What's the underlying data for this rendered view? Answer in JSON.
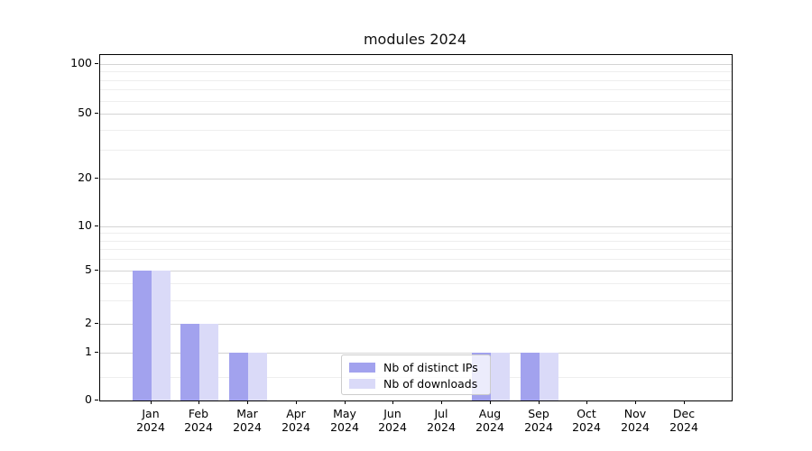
{
  "chart_data": {
    "type": "bar",
    "title": "modules 2024",
    "categories": [
      {
        "month": "Jan",
        "year": "2024"
      },
      {
        "month": "Feb",
        "year": "2024"
      },
      {
        "month": "Mar",
        "year": "2024"
      },
      {
        "month": "Apr",
        "year": "2024"
      },
      {
        "month": "May",
        "year": "2024"
      },
      {
        "month": "Jun",
        "year": "2024"
      },
      {
        "month": "Jul",
        "year": "2024"
      },
      {
        "month": "Aug",
        "year": "2024"
      },
      {
        "month": "Sep",
        "year": "2024"
      },
      {
        "month": "Oct",
        "year": "2024"
      },
      {
        "month": "Nov",
        "year": "2024"
      },
      {
        "month": "Dec",
        "year": "2024"
      }
    ],
    "series": [
      {
        "name": "Nb of distinct IPs",
        "color": "#a2a2ee",
        "values": [
          5,
          2,
          1,
          0,
          0,
          0,
          0,
          1,
          1,
          0,
          0,
          0
        ]
      },
      {
        "name": "Nb of downloads",
        "color": "#dadaf8",
        "values": [
          5,
          2,
          1,
          0,
          0,
          0,
          0,
          1,
          1,
          0,
          0,
          0
        ]
      }
    ],
    "xlabel": "",
    "ylabel": "",
    "yscale": "symlog-like (linear 0-1, logarithmic above)",
    "yticks": [
      0,
      1,
      2,
      5,
      10,
      20,
      50,
      100
    ],
    "ytick_labels": [
      "0",
      "1",
      "2",
      "5",
      "10",
      "20",
      "50",
      "100"
    ],
    "minor_gridline_values": [
      0.5,
      3,
      4,
      6,
      7,
      8,
      9,
      30,
      40,
      60,
      70,
      80,
      90
    ],
    "ylim": [
      0,
      113
    ],
    "grid": "horizontal major and minor, light gray",
    "legend_position": "inside, lower center"
  },
  "colors": {
    "major_grid": "#d4d4d4",
    "minor_grid": "#eeeeee",
    "axis": "#000000",
    "background": "#ffffff"
  }
}
